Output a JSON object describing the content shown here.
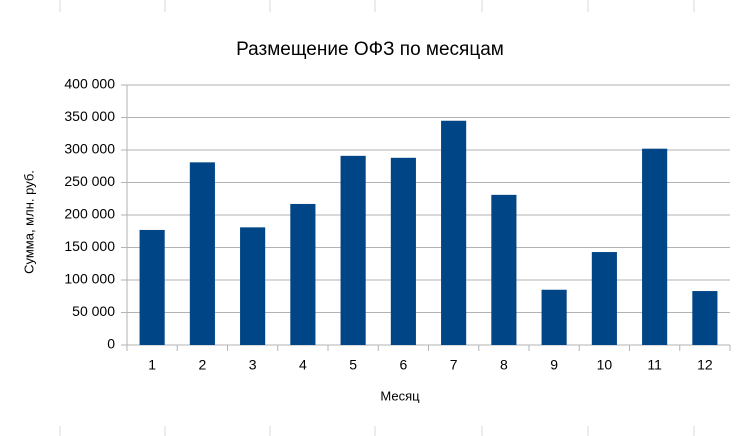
{
  "chart_data": {
    "type": "bar",
    "title": "Размещение ОФЗ по месяцам",
    "x_label": "Месяц",
    "y_label": "Сумма, млн. руб.",
    "categories": [
      "1",
      "2",
      "3",
      "4",
      "5",
      "6",
      "7",
      "8",
      "9",
      "10",
      "11",
      "12"
    ],
    "values": [
      177000,
      281000,
      181000,
      217000,
      291000,
      288000,
      345000,
      231000,
      85000,
      143000,
      302000,
      83000
    ],
    "color": "#004586",
    "ylim": [
      0,
      400000
    ],
    "yticks": [
      0,
      {
        "value": 50000,
        "label": "50 000"
      },
      {
        "value": 100000,
        "label": "100 000"
      },
      {
        "value": 150000,
        "label": "150 000"
      },
      {
        "value": 200000,
        "label": "200 000"
      },
      {
        "value": 250000,
        "label": "250 000"
      },
      {
        "value": 300000,
        "label": "300 000"
      },
      {
        "value": 350000,
        "label": "350 000"
      },
      {
        "value": 400000,
        "label": "400 000"
      }
    ],
    "grid": true
  }
}
